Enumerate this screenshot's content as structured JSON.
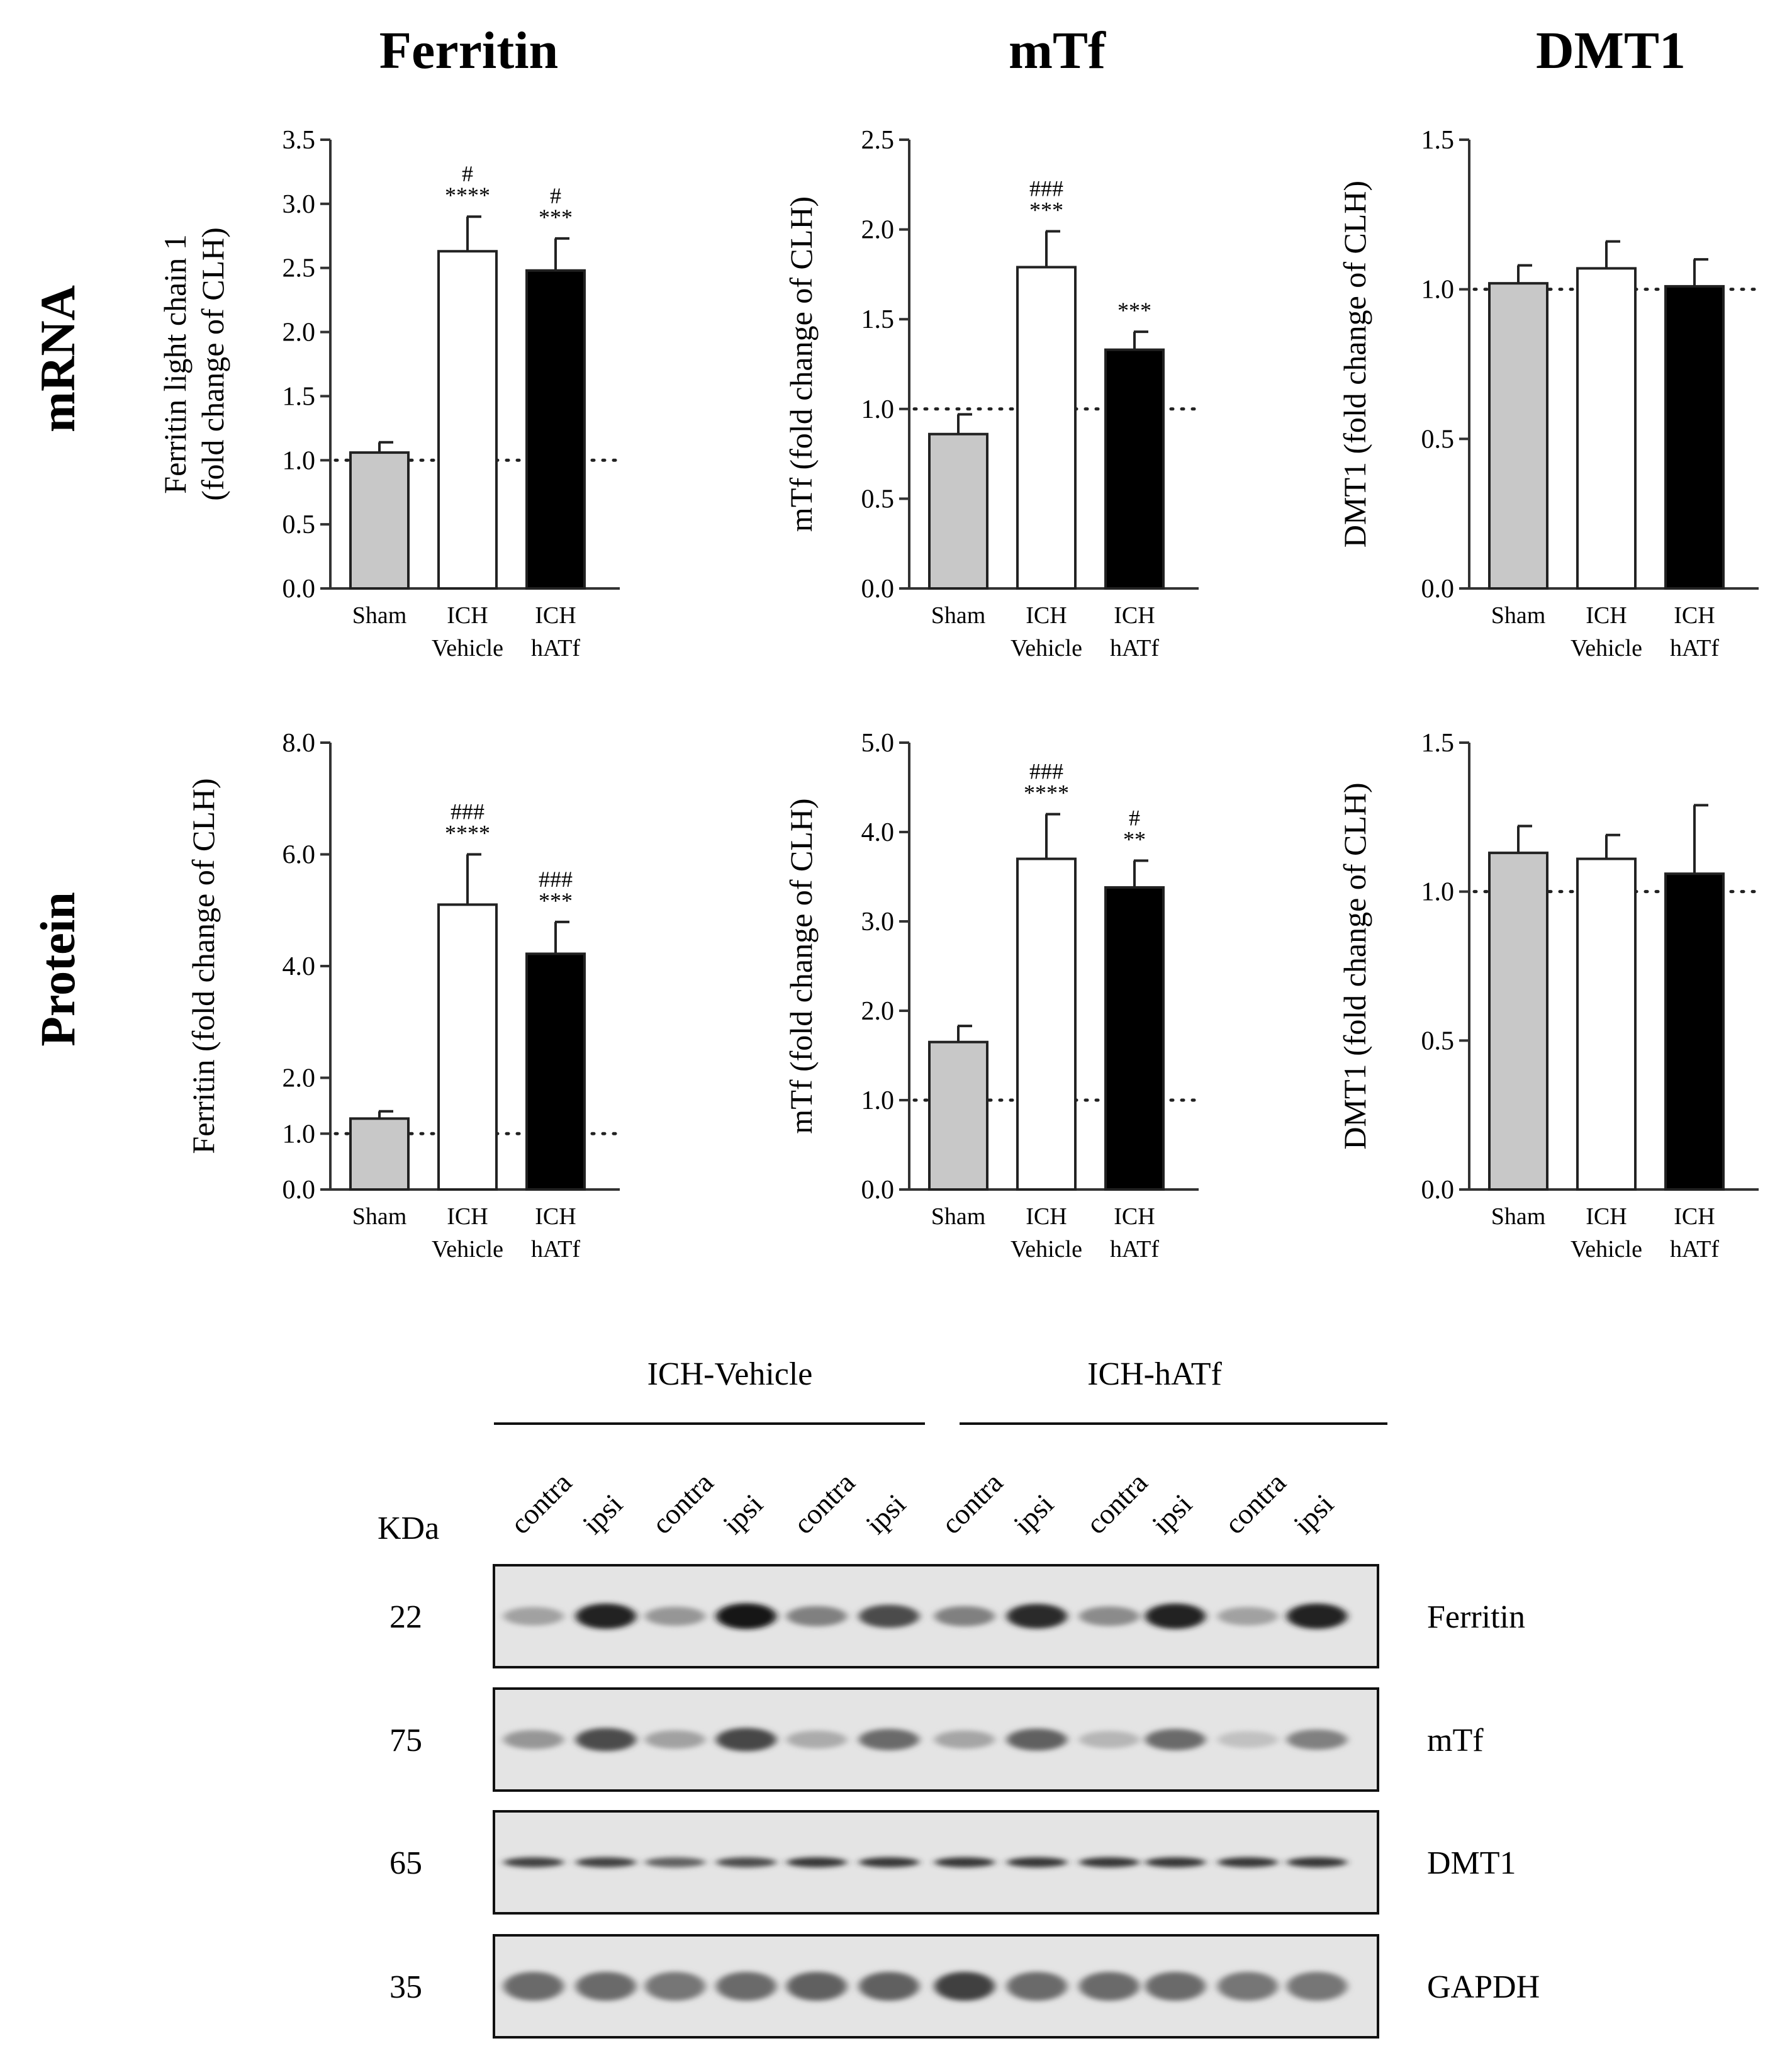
{
  "column_titles": [
    "Ferritin",
    "mTf",
    "DMT1"
  ],
  "row_titles": [
    "mRNA",
    "Protein"
  ],
  "chart_data": [
    {
      "type": "bar",
      "panel": "mrna-ferritin",
      "ylabel_lines": [
        "Ferritin light chain 1",
        "(fold change of CLH)"
      ],
      "categories": [
        [
          "Sham"
        ],
        [
          "ICH",
          "Vehicle"
        ],
        [
          "ICH",
          "hATf"
        ]
      ],
      "values": [
        1.06,
        2.63,
        2.48
      ],
      "errors": [
        0.08,
        0.27,
        0.25
      ],
      "bar_colors": [
        "#c8c8c8",
        "#ffffff",
        "#000000"
      ],
      "ylim": [
        0,
        3.5
      ],
      "ticks": [
        0.0,
        0.5,
        1.0,
        1.5,
        2.0,
        2.5,
        3.0,
        3.5
      ],
      "tick_labels": [
        "0.0",
        "0.5",
        "1.0",
        "1.5",
        "2.0",
        "2.5",
        "3.0",
        "3.5"
      ],
      "reference_line": 1.0,
      "significance": [
        [],
        [
          "#",
          "****"
        ],
        [
          "#",
          "***"
        ]
      ]
    },
    {
      "type": "bar",
      "panel": "mrna-mtf",
      "ylabel_lines": [
        "mTf (fold change of CLH)"
      ],
      "categories": [
        [
          "Sham"
        ],
        [
          "ICH",
          "Vehicle"
        ],
        [
          "ICH",
          "hATf"
        ]
      ],
      "values": [
        0.86,
        1.79,
        1.33
      ],
      "errors": [
        0.11,
        0.2,
        0.1
      ],
      "bar_colors": [
        "#c8c8c8",
        "#ffffff",
        "#000000"
      ],
      "ylim": [
        0,
        2.5
      ],
      "ticks": [
        0.0,
        0.5,
        1.0,
        1.5,
        2.0,
        2.5
      ],
      "tick_labels": [
        "0.0",
        "0.5",
        "1.0",
        "1.5",
        "2.0",
        "2.5"
      ],
      "reference_line": 1.0,
      "significance": [
        [],
        [
          "###",
          "***"
        ],
        [
          "***"
        ]
      ]
    },
    {
      "type": "bar",
      "panel": "mrna-dmt1",
      "ylabel_lines": [
        "DMT1 (fold change of CLH)"
      ],
      "categories": [
        [
          "Sham"
        ],
        [
          "ICH",
          "Vehicle"
        ],
        [
          "ICH",
          "hATf"
        ]
      ],
      "values": [
        1.02,
        1.07,
        1.01
      ],
      "errors": [
        0.06,
        0.09,
        0.09
      ],
      "bar_colors": [
        "#c8c8c8",
        "#ffffff",
        "#000000"
      ],
      "ylim": [
        0,
        1.5
      ],
      "ticks": [
        0.0,
        0.5,
        1.0,
        1.5
      ],
      "tick_labels": [
        "0.0",
        "0.5",
        "1.0",
        "1.5"
      ],
      "reference_line": 1.0,
      "significance": [
        [],
        [],
        []
      ]
    },
    {
      "type": "bar",
      "panel": "protein-ferritin",
      "ylabel_lines": [
        "Ferritin (fold change of CLH)"
      ],
      "categories": [
        [
          "Sham"
        ],
        [
          "ICH",
          "Vehicle"
        ],
        [
          "ICH",
          "hATf"
        ]
      ],
      "values": [
        1.27,
        5.1,
        4.22
      ],
      "errors": [
        0.13,
        0.9,
        0.57
      ],
      "bar_colors": [
        "#c8c8c8",
        "#ffffff",
        "#000000"
      ],
      "ylim": [
        0,
        8
      ],
      "ticks": [
        0,
        1,
        2,
        4,
        6,
        8
      ],
      "tick_labels": [
        "0.0",
        "1.0",
        "2.0",
        "4.0",
        "6.0",
        "8.0"
      ],
      "reference_line": 1.0,
      "significance": [
        [],
        [
          "###",
          "****"
        ],
        [
          "###",
          "***"
        ]
      ]
    },
    {
      "type": "bar",
      "panel": "protein-mtf",
      "ylabel_lines": [
        "mTf (fold change of CLH)"
      ],
      "categories": [
        [
          "Sham"
        ],
        [
          "ICH",
          "Vehicle"
        ],
        [
          "ICH",
          "hATf"
        ]
      ],
      "values": [
        1.65,
        3.7,
        3.38
      ],
      "errors": [
        0.18,
        0.5,
        0.3
      ],
      "bar_colors": [
        "#c8c8c8",
        "#ffffff",
        "#000000"
      ],
      "ylim": [
        0,
        5
      ],
      "ticks": [
        0,
        1,
        2,
        3,
        4,
        5
      ],
      "tick_labels": [
        "0.0",
        "1.0",
        "2.0",
        "3.0",
        "4.0",
        "5.0"
      ],
      "reference_line": 1.0,
      "significance": [
        [],
        [
          "###",
          "****"
        ],
        [
          "#",
          "**"
        ]
      ]
    },
    {
      "type": "bar",
      "panel": "protein-dmt1",
      "ylabel_lines": [
        "DMT1 (fold change of CLH)"
      ],
      "categories": [
        [
          "Sham"
        ],
        [
          "ICH",
          "Vehicle"
        ],
        [
          "ICH",
          "hATf"
        ]
      ],
      "values": [
        1.13,
        1.11,
        1.06
      ],
      "errors": [
        0.09,
        0.08,
        0.23
      ],
      "bar_colors": [
        "#c8c8c8",
        "#ffffff",
        "#000000"
      ],
      "ylim": [
        0,
        1.5
      ],
      "ticks": [
        0.0,
        0.5,
        1.0,
        1.5
      ],
      "tick_labels": [
        "0.0",
        "0.5",
        "1.0",
        "1.5"
      ],
      "reference_line": 1.0,
      "significance": [
        [],
        [],
        []
      ]
    }
  ],
  "blot": {
    "group_labels": [
      "ICH-Vehicle",
      "ICH-hATf"
    ],
    "kda_header": "KDa",
    "lanes": [
      "contra",
      "ipsi",
      "contra",
      "ipsi",
      "contra",
      "ipsi",
      "contra",
      "ipsi",
      "contra",
      "ipsi",
      "contra",
      "ipsi"
    ],
    "rows": [
      {
        "name": "Ferritin",
        "kda": "22",
        "intensity": [
          0.3,
          0.9,
          0.35,
          0.95,
          0.45,
          0.7,
          0.45,
          0.85,
          0.4,
          0.9,
          0.3,
          0.9
        ]
      },
      {
        "name": "mTf",
        "kda": "75",
        "intensity": [
          0.35,
          0.7,
          0.3,
          0.72,
          0.25,
          0.55,
          0.28,
          0.6,
          0.2,
          0.55,
          0.15,
          0.45
        ]
      },
      {
        "name": "DMT1",
        "kda": "65",
        "intensity": [
          0.75,
          0.75,
          0.6,
          0.7,
          0.8,
          0.8,
          0.8,
          0.8,
          0.8,
          0.8,
          0.8,
          0.8
        ]
      },
      {
        "name": "GAPDH",
        "kda": "35",
        "intensity": [
          0.55,
          0.55,
          0.5,
          0.55,
          0.6,
          0.6,
          0.75,
          0.55,
          0.55,
          0.55,
          0.5,
          0.5
        ]
      }
    ]
  }
}
